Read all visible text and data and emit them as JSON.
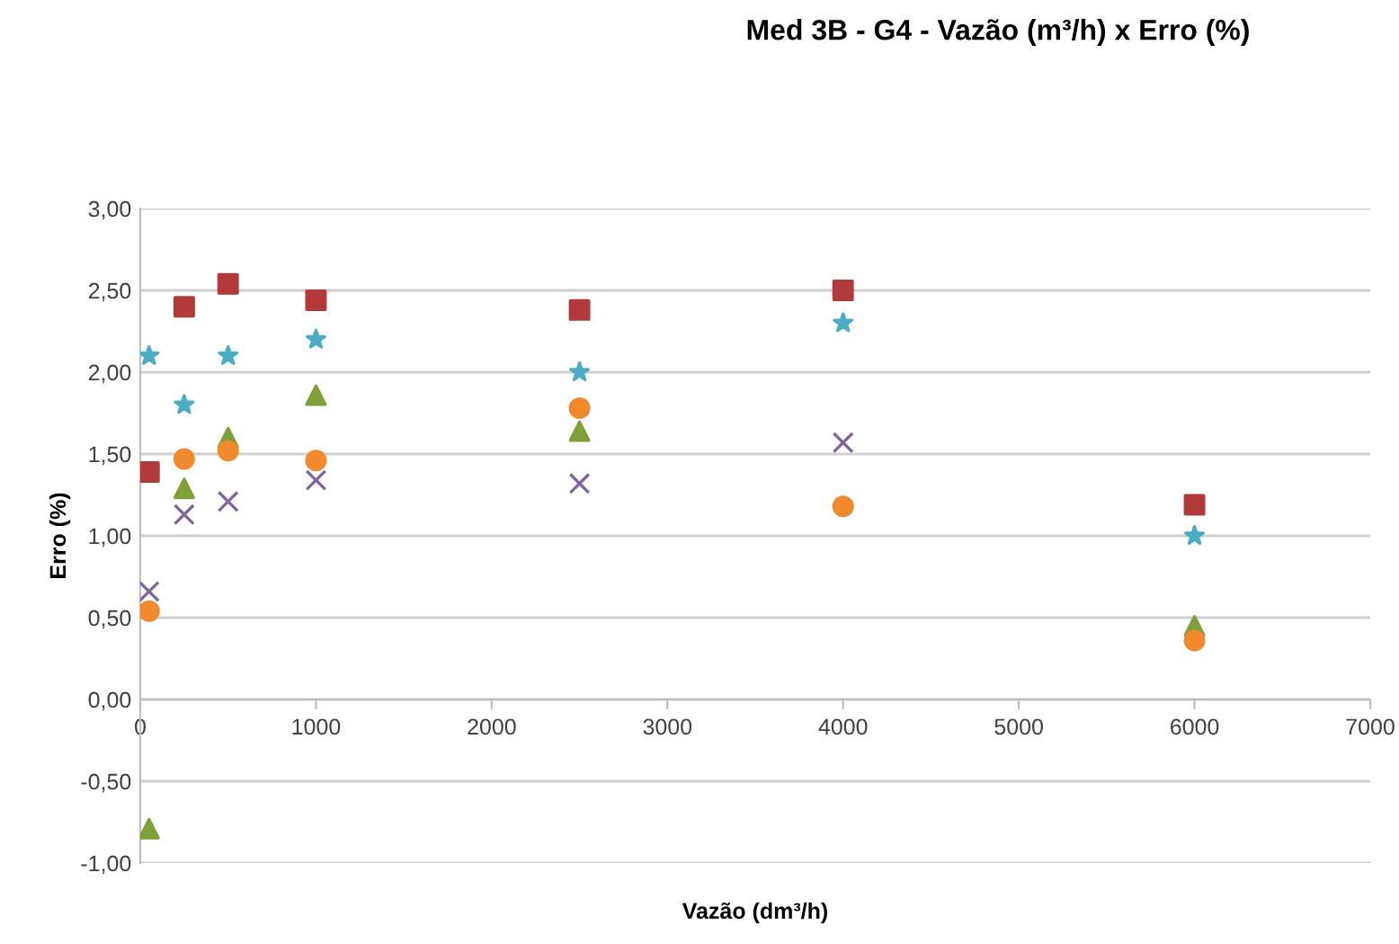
{
  "chart_data": {
    "type": "scatter",
    "title": "Med 3B - G4 - Vazão (m³/h) x Erro (%)",
    "xlabel": "Vazão (dm³/h)",
    "ylabel": "Erro (%)",
    "x": [
      50,
      250,
      500,
      1000,
      2500,
      4000,
      6000
    ],
    "series": [
      {
        "color": "#b23a3a",
        "marker": "square",
        "values": [
          1.39,
          2.4,
          2.54,
          2.44,
          2.38,
          2.5,
          1.19
        ]
      },
      {
        "color": "#4bacc6",
        "marker": "star",
        "values": [
          2.1,
          1.8,
          2.1,
          2.2,
          2.0,
          2.3,
          1.0
        ]
      },
      {
        "color": "#7f9f3a",
        "marker": "triangle",
        "values": [
          -0.79,
          1.29,
          1.6,
          1.86,
          1.64,
          null,
          0.45
        ]
      },
      {
        "color": "#8064a2",
        "marker": "cross",
        "values": [
          0.66,
          1.13,
          1.21,
          1.34,
          1.32,
          1.57,
          null
        ]
      },
      {
        "color": "#f08a2c",
        "marker": "circle",
        "values": [
          0.54,
          1.47,
          1.52,
          1.46,
          1.78,
          1.18,
          0.36
        ]
      }
    ],
    "xlim": [
      0,
      7000
    ],
    "xticks": [
      0,
      1000,
      2000,
      3000,
      4000,
      5000,
      6000,
      7000
    ],
    "ylim": [
      -1,
      3
    ],
    "yticks": [
      {
        "value": -1,
        "label": "-1,00"
      },
      {
        "value": -0.5,
        "label": "-0,50"
      },
      {
        "value": 0,
        "label": "0,00"
      },
      {
        "value": 0.5,
        "label": "0,50"
      },
      {
        "value": 1,
        "label": "1,00"
      },
      {
        "value": 1.5,
        "label": "1,50"
      },
      {
        "value": 2,
        "label": "2,00"
      },
      {
        "value": 2.5,
        "label": "2,50"
      },
      {
        "value": 3,
        "label": "3,00"
      }
    ],
    "grid": "y",
    "legend": false
  }
}
